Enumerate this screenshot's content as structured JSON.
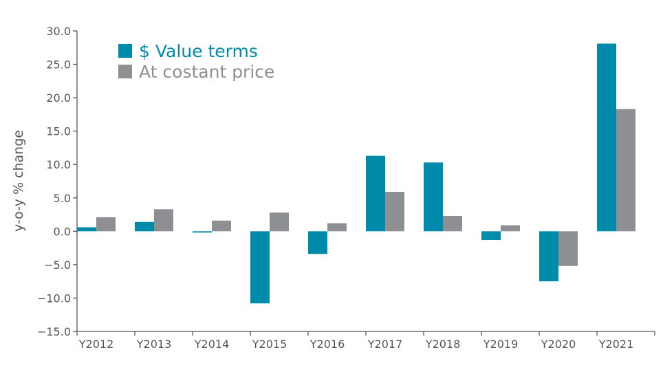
{
  "chart_data": {
    "type": "bar",
    "ylabel": "y-o-y % change",
    "xlabel": "",
    "ylim": [
      -15.0,
      30.0
    ],
    "yticks": [
      "30.0",
      "25.0",
      "20.0",
      "15.0",
      "10.0",
      "5.0",
      "0.0",
      "−5.0",
      "−10.0",
      "−15.0"
    ],
    "ytick_values": [
      30,
      25,
      20,
      15,
      10,
      5,
      0,
      -5,
      -10,
      -15
    ],
    "categories": [
      "Y2012",
      "Y2013",
      "Y2014",
      "Y2015",
      "Y2016",
      "Y2017",
      "Y2018",
      "Y2019",
      "Y2020",
      "Y2021"
    ],
    "series": [
      {
        "name": "$ Value terms",
        "color": "#008BAA",
        "values": [
          0.6,
          1.4,
          -0.2,
          -10.8,
          -3.4,
          11.3,
          10.3,
          -1.3,
          -7.5,
          28.1
        ]
      },
      {
        "name": "At costant price",
        "color": "#8E8F93",
        "values": [
          2.1,
          3.3,
          1.6,
          2.8,
          1.2,
          5.9,
          2.3,
          0.9,
          -5.2,
          18.3
        ]
      }
    ],
    "grid": false,
    "legend_position": "top-left"
  }
}
